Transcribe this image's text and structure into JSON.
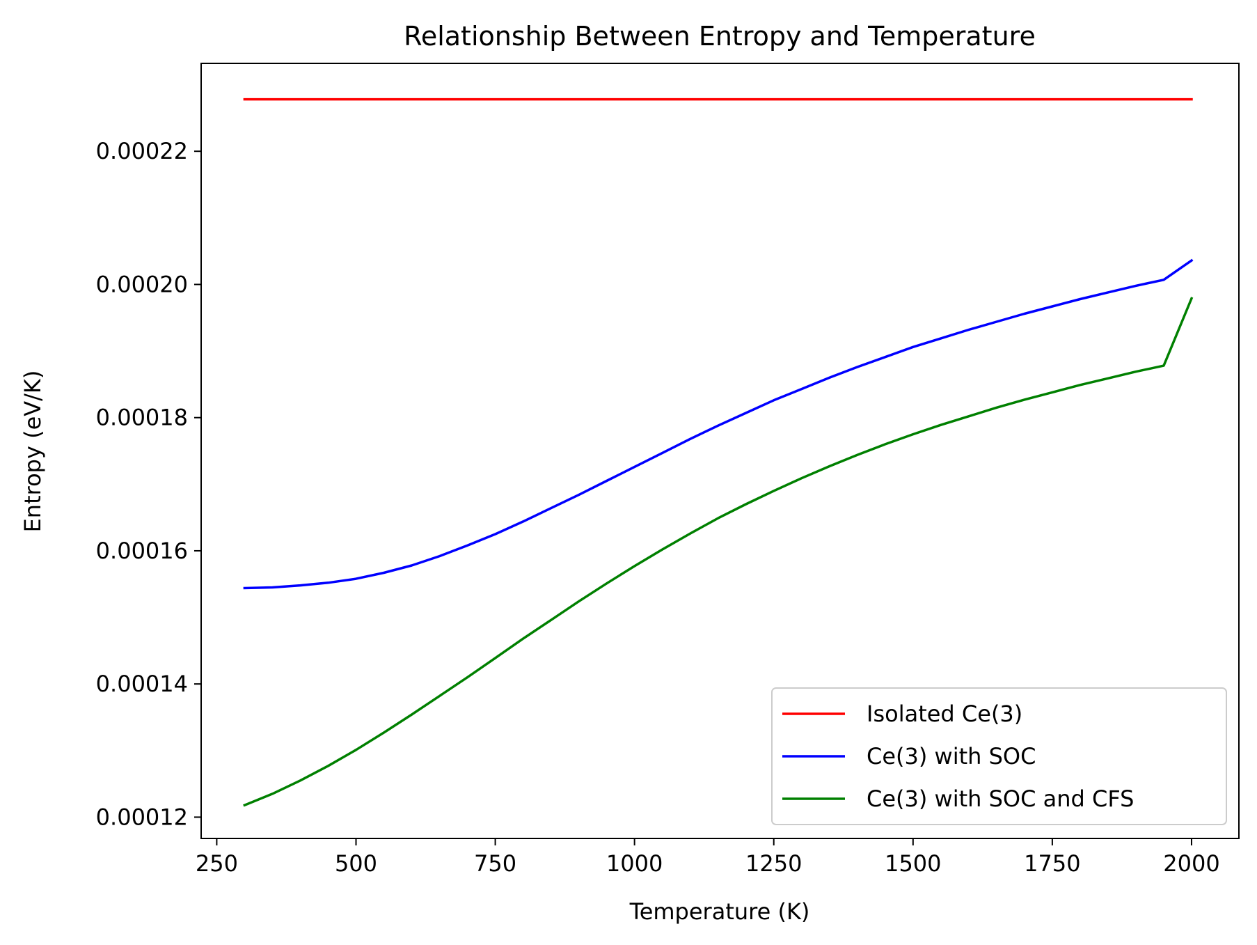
{
  "chart_data": {
    "type": "line",
    "title": "Relationship Between Entropy and Temperature",
    "xlabel": "Temperature (K)",
    "ylabel": "Entropy (eV/K)",
    "xlim": [
      222,
      2085
    ],
    "ylim": [
      0.0001168,
      0.0002332
    ],
    "xticks": [
      250,
      500,
      750,
      1000,
      1250,
      1500,
      1750,
      2000
    ],
    "xtick_labels": [
      "250",
      "500",
      "750",
      "1000",
      "1250",
      "1500",
      "1750",
      "2000"
    ],
    "yticks": [
      0.00012,
      0.00014,
      0.00016,
      0.00018,
      0.0002,
      0.00022
    ],
    "ytick_labels": [
      "0.00012",
      "0.00014",
      "0.00016",
      "0.00018",
      "0.00020",
      "0.00022"
    ],
    "grid": false,
    "legend_position": "bottom-right",
    "series": [
      {
        "name": "Isolated Ce(3)",
        "color": "#ff0000",
        "x": [
          300,
          500,
          750,
          1000,
          1250,
          1500,
          1750,
          2000
        ],
        "y": [
          0.0002278,
          0.0002278,
          0.0002278,
          0.0002278,
          0.0002278,
          0.0002278,
          0.0002278,
          0.0002278
        ]
      },
      {
        "name": "Ce(3) with SOC",
        "color": "#0000ff",
        "x": [
          300,
          350,
          400,
          450,
          500,
          550,
          600,
          650,
          700,
          750,
          800,
          850,
          900,
          950,
          1000,
          1050,
          1100,
          1150,
          1200,
          1250,
          1300,
          1350,
          1400,
          1450,
          1500,
          1550,
          1600,
          1650,
          1700,
          1750,
          1800,
          1850,
          1900,
          1950,
          2000
        ],
        "y": [
          0.0001544,
          0.0001545,
          0.0001548,
          0.0001552,
          0.0001558,
          0.0001567,
          0.0001578,
          0.0001592,
          0.0001608,
          0.0001625,
          0.0001644,
          0.0001664,
          0.0001684,
          0.0001705,
          0.0001726,
          0.0001747,
          0.0001768,
          0.0001788,
          0.0001807,
          0.0001826,
          0.0001843,
          0.000186,
          0.0001876,
          0.0001891,
          0.0001906,
          0.0001919,
          0.0001932,
          0.0001944,
          0.0001956,
          0.0001967,
          0.0001978,
          0.0001988,
          0.0001998,
          0.0002007,
          0.0002036
        ]
      },
      {
        "name": "Ce(3) with SOC and CFS",
        "color": "#008000",
        "x": [
          300,
          350,
          400,
          450,
          500,
          550,
          600,
          650,
          700,
          750,
          800,
          850,
          900,
          950,
          1000,
          1050,
          1100,
          1150,
          1200,
          1250,
          1300,
          1350,
          1400,
          1450,
          1500,
          1550,
          1600,
          1650,
          1700,
          1750,
          1800,
          1850,
          1900,
          1950,
          2000
        ],
        "y": [
          0.0001218,
          0.0001235,
          0.0001255,
          0.0001277,
          0.0001301,
          0.0001327,
          0.0001354,
          0.0001382,
          0.000141,
          0.0001439,
          0.0001468,
          0.0001496,
          0.0001524,
          0.0001551,
          0.0001577,
          0.0001602,
          0.0001626,
          0.0001649,
          0.000167,
          0.000169,
          0.0001709,
          0.0001727,
          0.0001744,
          0.000176,
          0.0001775,
          0.0001789,
          0.0001802,
          0.0001815,
          0.0001827,
          0.0001838,
          0.0001849,
          0.0001859,
          0.0001869,
          0.0001878,
          0.0001979
        ]
      }
    ]
  }
}
